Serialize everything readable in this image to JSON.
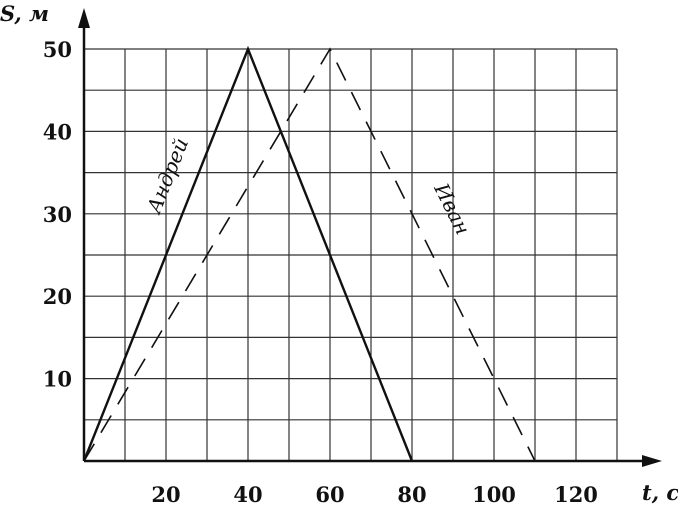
{
  "chart_data": {
    "type": "line",
    "xlabel": "t, c",
    "ylabel": "S, м",
    "xlim": [
      0,
      130
    ],
    "ylim": [
      0,
      50
    ],
    "x_ticks": [
      20,
      40,
      60,
      80,
      100,
      120
    ],
    "y_ticks": [
      10,
      20,
      30,
      40,
      50
    ],
    "grid": true,
    "series": [
      {
        "name": "Андрей",
        "style": "solid",
        "color": "#111111",
        "points": [
          [
            0,
            0
          ],
          [
            40,
            50
          ],
          [
            80,
            0
          ]
        ]
      },
      {
        "name": "Иван",
        "style": "dashed",
        "color": "#111111",
        "points": [
          [
            0,
            0
          ],
          [
            60,
            50
          ],
          [
            110,
            0
          ]
        ]
      }
    ]
  }
}
